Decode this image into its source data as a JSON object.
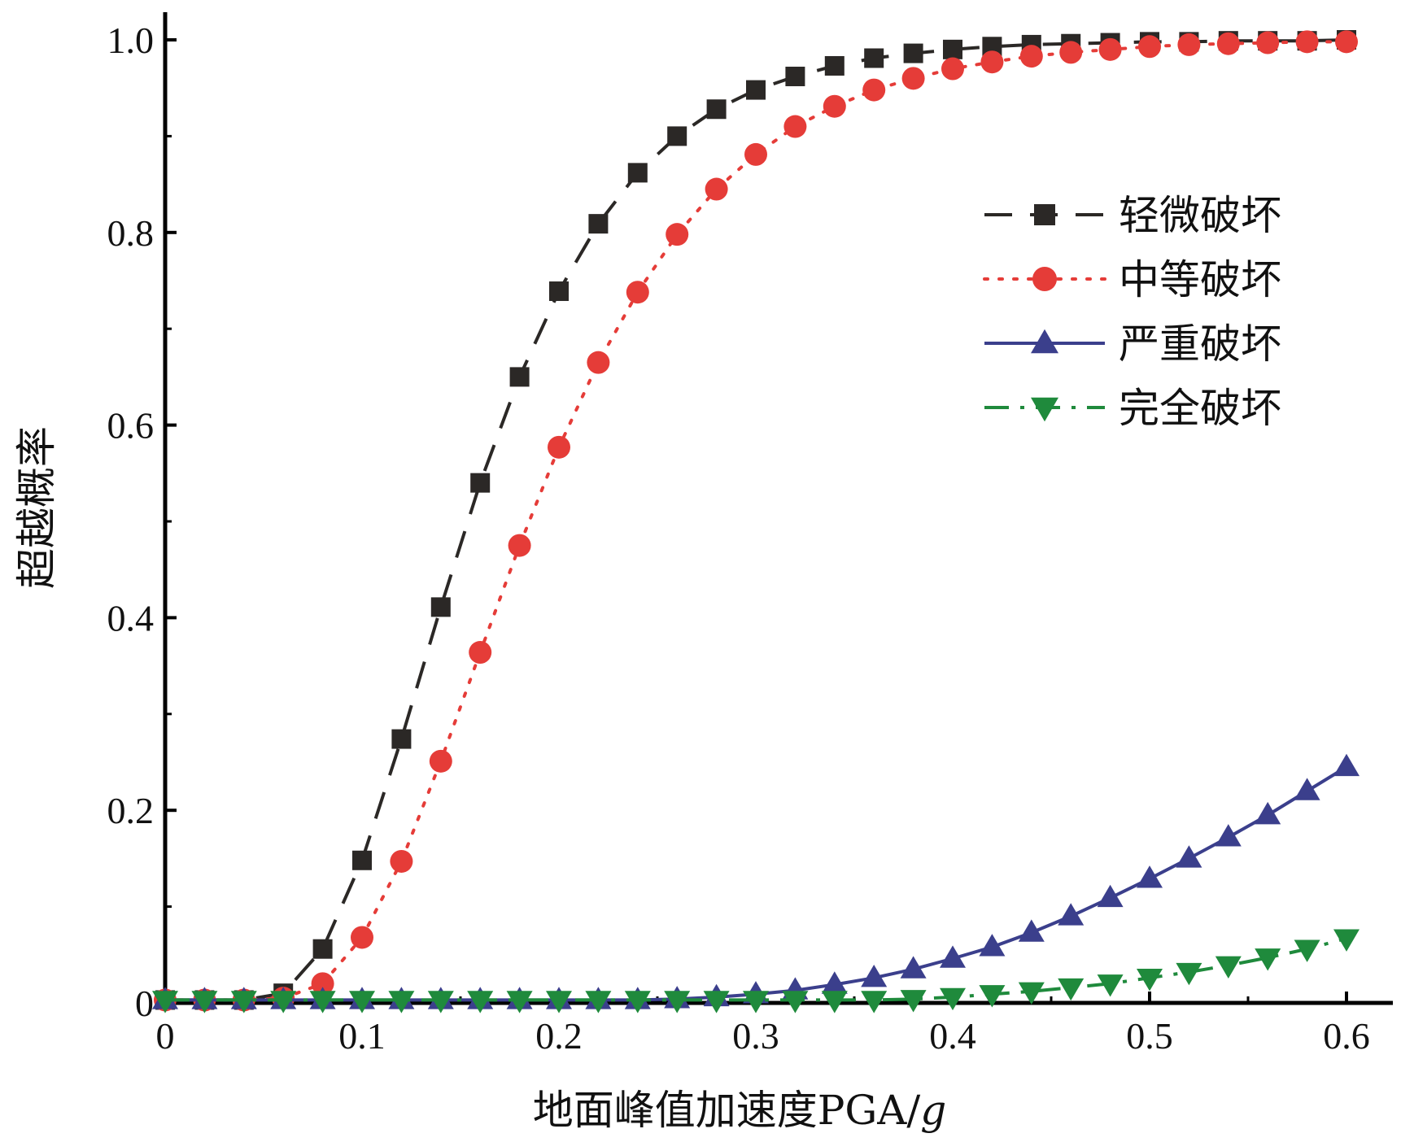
{
  "chart_data": {
    "type": "line",
    "title": "",
    "xlabel": "地面峰值加速度PGA/g",
    "xlabel_main": "地面峰值加速度PGA/",
    "xlabel_unit": "g",
    "ylabel": "超越概率",
    "xlim": [
      0,
      0.62
    ],
    "ylim": [
      0,
      1.03
    ],
    "x_ticks": [
      0,
      0.1,
      0.2,
      0.3,
      0.4,
      0.5,
      0.6
    ],
    "x_tick_labels": [
      "0",
      "0.1",
      "0.2",
      "0.3",
      "0.4",
      "0.5",
      "0.6"
    ],
    "y_ticks": [
      0,
      0.2,
      0.4,
      0.6,
      0.8,
      1.0
    ],
    "y_tick_labels": [
      "0",
      "0.2",
      "0.4",
      "0.6",
      "0.8",
      "1.0"
    ],
    "grid": false,
    "legend_position": "upper-right",
    "x": [
      0,
      0.02,
      0.04,
      0.06,
      0.08,
      0.1,
      0.12,
      0.14,
      0.16,
      0.18,
      0.2,
      0.22,
      0.24,
      0.26,
      0.28,
      0.3,
      0.32,
      0.34,
      0.36,
      0.38,
      0.4,
      0.42,
      0.44,
      0.46,
      0.48,
      0.5,
      0.52,
      0.54,
      0.56,
      0.58,
      0.6
    ],
    "series": [
      {
        "name": "轻微破坏",
        "color": "#2b2826",
        "marker": "square",
        "line_style": "dashed",
        "values": [
          0.003,
          0.003,
          0.003,
          0.01,
          0.056,
          0.148,
          0.274,
          0.411,
          0.54,
          0.65,
          0.739,
          0.809,
          0.862,
          0.9,
          0.928,
          0.948,
          0.962,
          0.973,
          0.981,
          0.986,
          0.99,
          0.993,
          0.995,
          0.996,
          0.997,
          0.998,
          0.998,
          0.999,
          0.999,
          0.999,
          1.0
        ]
      },
      {
        "name": "中等破坏",
        "color": "#e53c38",
        "marker": "circle",
        "line_style": "dotted",
        "values": [
          0.003,
          0.003,
          0.003,
          0.005,
          0.02,
          0.068,
          0.147,
          0.251,
          0.364,
          0.475,
          0.577,
          0.665,
          0.738,
          0.798,
          0.845,
          0.881,
          0.91,
          0.931,
          0.948,
          0.96,
          0.97,
          0.977,
          0.983,
          0.987,
          0.99,
          0.993,
          0.995,
          0.996,
          0.997,
          0.998,
          0.998
        ]
      },
      {
        "name": "严重破坏",
        "color": "#3b3f8c",
        "marker": "triangle-up",
        "line_style": "solid",
        "values": [
          0.003,
          0.003,
          0.003,
          0.003,
          0.003,
          0.003,
          0.003,
          0.003,
          0.003,
          0.003,
          0.003,
          0.003,
          0.003,
          0.004,
          0.006,
          0.009,
          0.013,
          0.019,
          0.026,
          0.035,
          0.046,
          0.058,
          0.073,
          0.09,
          0.109,
          0.129,
          0.15,
          0.172,
          0.195,
          0.22,
          0.245
        ]
      },
      {
        "name": "完全破坏",
        "color": "#1f8a3c",
        "marker": "triangle-down",
        "line_style": "dash-dot",
        "values": [
          0.003,
          0.003,
          0.003,
          0.003,
          0.003,
          0.003,
          0.003,
          0.003,
          0.003,
          0.003,
          0.003,
          0.003,
          0.003,
          0.003,
          0.003,
          0.003,
          0.003,
          0.003,
          0.003,
          0.004,
          0.006,
          0.009,
          0.012,
          0.016,
          0.02,
          0.026,
          0.032,
          0.039,
          0.047,
          0.056,
          0.067
        ]
      }
    ]
  }
}
